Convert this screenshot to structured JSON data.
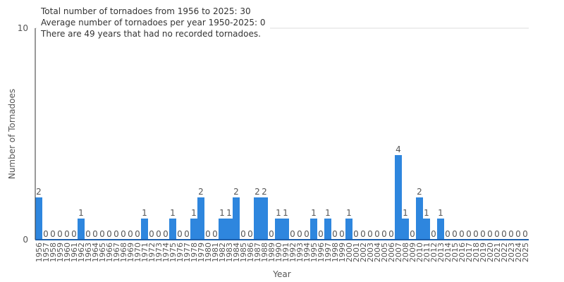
{
  "info": {
    "total_line": "Total number of tornadoes from 1956 to 2025: 30",
    "avg_line": "Average number of tornadoes per year 1950-2025: 0",
    "zero_line": "There are 49 years that had no recorded tornadoes."
  },
  "chart_data": {
    "type": "bar",
    "xlabel": "Year",
    "ylabel": "Number of Tornadoes",
    "ylim": [
      0,
      10
    ],
    "yticks": [
      0,
      10
    ],
    "grid": true,
    "bar_color": "#2e86de",
    "categories": [
      "1956",
      "1957",
      "1958",
      "1959",
      "1960",
      "1961",
      "1962",
      "1963",
      "1964",
      "1965",
      "1966",
      "1967",
      "1968",
      "1969",
      "1970",
      "1971",
      "1972",
      "1973",
      "1974",
      "1975",
      "1976",
      "1977",
      "1978",
      "1979",
      "1980",
      "1981",
      "1982",
      "1983",
      "1984",
      "1985",
      "1986",
      "1987",
      "1988",
      "1989",
      "1990",
      "1991",
      "1992",
      "1993",
      "1994",
      "1995",
      "1996",
      "1997",
      "1998",
      "1999",
      "2000",
      "2001",
      "2002",
      "2003",
      "2004",
      "2005",
      "2006",
      "2007",
      "2008",
      "2009",
      "2010",
      "2011",
      "2012",
      "2013",
      "2014",
      "2015",
      "2016",
      "2017",
      "2018",
      "2019",
      "2020",
      "2021",
      "2022",
      "2023",
      "2024",
      "2025"
    ],
    "values": [
      2,
      0,
      0,
      0,
      0,
      0,
      1,
      0,
      0,
      0,
      0,
      0,
      0,
      0,
      0,
      1,
      0,
      0,
      0,
      1,
      0,
      0,
      1,
      2,
      0,
      0,
      1,
      1,
      2,
      0,
      0,
      2,
      2,
      0,
      1,
      1,
      0,
      0,
      0,
      1,
      0,
      1,
      0,
      0,
      1,
      0,
      0,
      0,
      0,
      0,
      0,
      4,
      1,
      0,
      2,
      1,
      0,
      1,
      0,
      0,
      0,
      0,
      0,
      0,
      0,
      0,
      0,
      0,
      0,
      0
    ]
  }
}
